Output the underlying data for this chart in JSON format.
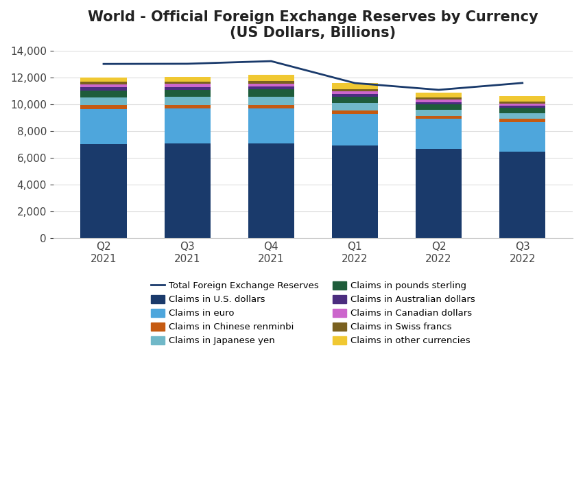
{
  "title": "World - Official Foreign Exchange Reserves by Currency\n(US Dollars, Billions)",
  "quarters": [
    "Q2\n2021",
    "Q3\n2021",
    "Q4\n2021",
    "Q1\n2022",
    "Q2\n2022",
    "Q3\n2022"
  ],
  "series": {
    "Claims in U.S. dollars": [
      7050,
      7070,
      7100,
      6900,
      6650,
      6480
    ],
    "Claims in euro": [
      2600,
      2620,
      2600,
      2350,
      2250,
      2200
    ],
    "Claims in Chinese renminbi": [
      270,
      265,
      265,
      260,
      245,
      240
    ],
    "Claims in Japanese yen": [
      590,
      590,
      590,
      580,
      430,
      420
    ],
    "Claims in pounds sterling": [
      530,
      530,
      540,
      480,
      430,
      390
    ],
    "Claims in Australian dollars": [
      220,
      210,
      215,
      200,
      160,
      160
    ],
    "Claims in Canadian dollars": [
      230,
      235,
      240,
      195,
      185,
      175
    ],
    "Claims in Swiss francs": [
      170,
      165,
      170,
      160,
      140,
      130
    ],
    "Claims in other currencies": [
      330,
      330,
      490,
      450,
      360,
      390
    ]
  },
  "colors": {
    "Claims in U.S. dollars": "#1a3a6b",
    "Claims in euro": "#4ea6dc",
    "Claims in Chinese renminbi": "#c55a11",
    "Claims in Japanese yen": "#70b8c8",
    "Claims in pounds sterling": "#1e5c3a",
    "Claims in Australian dollars": "#4b2d7f",
    "Claims in Canadian dollars": "#cc66cc",
    "Claims in Swiss francs": "#7a6120",
    "Claims in other currencies": "#f0c832"
  },
  "total_line": [
    13000,
    13015,
    13210,
    11575,
    11070,
    11585
  ],
  "total_line_color": "#1a3a6b",
  "ylim": [
    0,
    14000
  ],
  "yticks": [
    0,
    2000,
    4000,
    6000,
    8000,
    10000,
    12000,
    14000
  ],
  "background_color": "#ffffff"
}
